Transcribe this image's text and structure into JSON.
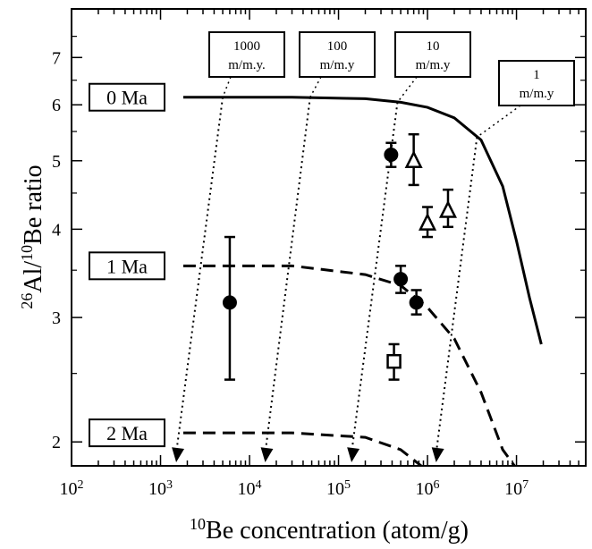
{
  "chart_data": {
    "type": "scatter",
    "title": "",
    "xscale": "log",
    "yscale": "log",
    "xlim": [
      100,
      60000000
    ],
    "ylim": [
      1.85,
      8.2
    ],
    "x_ticks": [
      100,
      1000,
      10000,
      100000,
      1000000,
      10000000
    ],
    "x_tick_labels": [
      {
        "base": "10",
        "exp": "2"
      },
      {
        "base": "10",
        "exp": "3"
      },
      {
        "base": "10",
        "exp": "4"
      },
      {
        "base": "10",
        "exp": "5"
      },
      {
        "base": "10",
        "exp": "6"
      },
      {
        "base": "10",
        "exp": "7"
      }
    ],
    "y_ticks": [
      2,
      3,
      4,
      5,
      6,
      7
    ],
    "y_tick_labels": [
      "2",
      "3",
      "4",
      "5",
      "6",
      "7"
    ],
    "xlabel": {
      "sup": "10",
      "text": "Be concentration  (atom/g)"
    },
    "ylabel": {
      "sup1": "26",
      "mid": "Al/",
      "sup2": "10",
      "text": "Be ratio"
    },
    "isochrons": [
      {
        "label": "0 Ma",
        "style": "solid",
        "x": [
          1800,
          30000,
          200000,
          500000,
          1000000,
          2000000,
          4000000,
          7000000,
          10000000,
          14000000,
          19000000
        ],
        "y": [
          6.15,
          6.15,
          6.12,
          6.05,
          5.95,
          5.75,
          5.35,
          4.6,
          3.85,
          3.2,
          2.75
        ]
      },
      {
        "label": "1 Ma",
        "style": "dashed",
        "x": [
          1800,
          30000,
          200000,
          500000,
          1000000,
          2000000,
          4000000,
          7000000,
          9500000
        ],
        "y": [
          3.55,
          3.55,
          3.45,
          3.33,
          3.1,
          2.8,
          2.35,
          1.95,
          1.85
        ]
      },
      {
        "label": "2 Ma",
        "style": "dashed",
        "x": [
          1800,
          30000,
          200000,
          500000,
          850000
        ],
        "y": [
          2.06,
          2.06,
          2.03,
          1.95,
          1.85
        ]
      }
    ],
    "erosion_rates": [
      {
        "label_line1": "1000",
        "label_line2": "m/m.y.",
        "x": [
          5000,
          1500
        ],
        "y": [
          6.15,
          1.85
        ]
      },
      {
        "label_line1": "100",
        "label_line2": "m/m.y",
        "x": [
          48000,
          15000
        ],
        "y": [
          6.15,
          1.85
        ]
      },
      {
        "label_line1": "10",
        "label_line2": "m/m.y",
        "x": [
          460000,
          140000
        ],
        "y": [
          6.05,
          1.85
        ]
      },
      {
        "label_line1": "1",
        "label_line2": "m/m.y",
        "x": [
          3600000,
          1250000
        ],
        "y": [
          5.4,
          1.85
        ]
      }
    ],
    "samples": [
      {
        "marker": "circle",
        "x": 6000,
        "y": 3.15,
        "err_low": 2.45,
        "err_high": 3.9
      },
      {
        "marker": "circle",
        "x": 390000,
        "y": 5.1,
        "err_low": 4.9,
        "err_high": 5.3
      },
      {
        "marker": "circle",
        "x": 500000,
        "y": 3.4,
        "err_low": 3.25,
        "err_high": 3.55
      },
      {
        "marker": "circle",
        "x": 750000,
        "y": 3.15,
        "err_low": 3.03,
        "err_high": 3.28
      },
      {
        "marker": "triangle",
        "x": 700000,
        "y": 5.0,
        "err_low": 4.62,
        "err_high": 5.45
      },
      {
        "marker": "triangle",
        "x": 1000000,
        "y": 4.08,
        "err_low": 3.9,
        "err_high": 4.3
      },
      {
        "marker": "triangle",
        "x": 1700000,
        "y": 4.25,
        "err_low": 4.03,
        "err_high": 4.55
      },
      {
        "marker": "square",
        "x": 420000,
        "y": 2.6,
        "err_low": 2.45,
        "err_high": 2.75
      }
    ]
  }
}
